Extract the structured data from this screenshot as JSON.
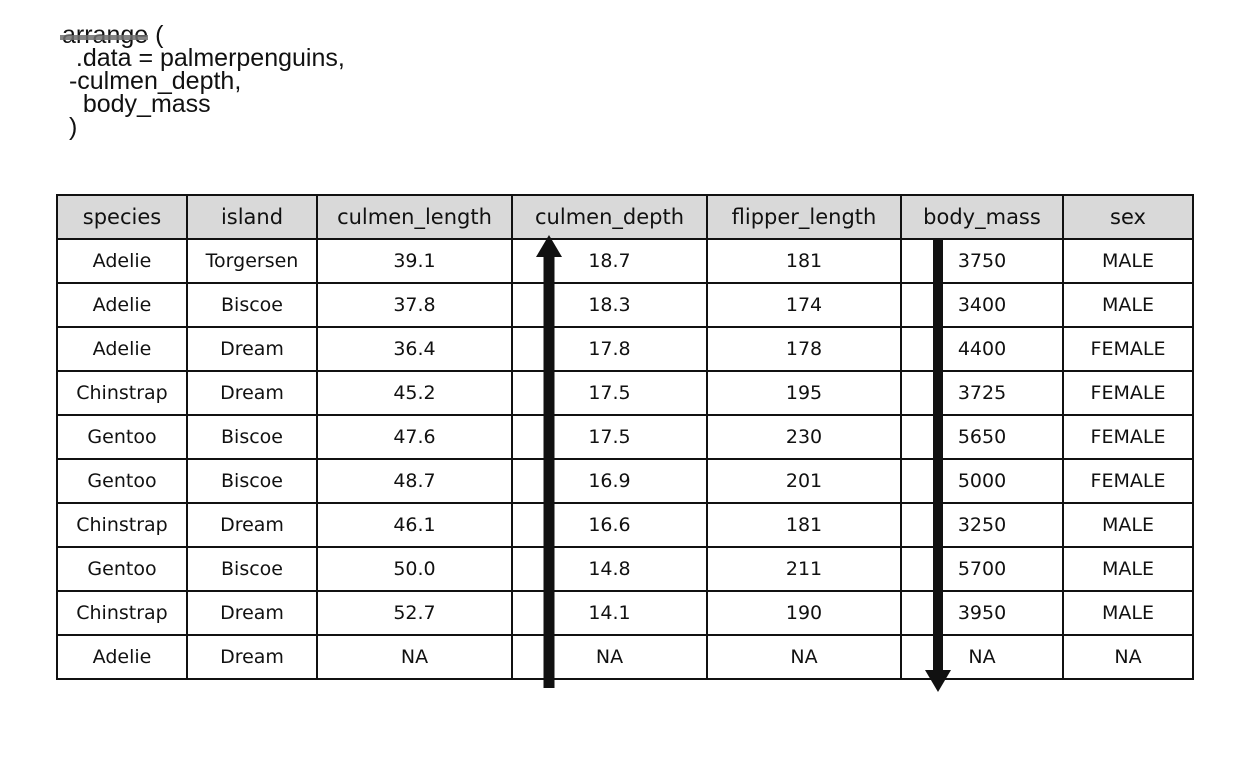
{
  "code": {
    "function_name": "arrange",
    "open_paren": " (",
    "arg_data": "  .data = palmerpenguins,",
    "arg_culmen_depth": " -culmen_depth,",
    "arg_body_mass": "   body_mass",
    "close_paren": " )"
  },
  "table": {
    "columns": [
      "species",
      "island",
      "culmen_length",
      "culmen_depth",
      "flipper_length",
      "body_mass",
      "sex"
    ],
    "rows": [
      [
        "Adelie",
        "Torgersen",
        "39.1",
        "18.7",
        "181",
        "3750",
        "MALE"
      ],
      [
        "Adelie",
        "Biscoe",
        "37.8",
        "18.3",
        "174",
        "3400",
        "MALE"
      ],
      [
        "Adelie",
        "Dream",
        "36.4",
        "17.8",
        "178",
        "4400",
        "FEMALE"
      ],
      [
        "Chinstrap",
        "Dream",
        "45.2",
        "17.5",
        "195",
        "3725",
        "FEMALE"
      ],
      [
        "Gentoo",
        "Biscoe",
        "47.6",
        "17.5",
        "230",
        "5650",
        "FEMALE"
      ],
      [
        "Gentoo",
        "Biscoe",
        "48.7",
        "16.9",
        "201",
        "5000",
        "FEMALE"
      ],
      [
        "Chinstrap",
        "Dream",
        "46.1",
        "16.6",
        "181",
        "3250",
        "MALE"
      ],
      [
        "Gentoo",
        "Biscoe",
        "50.0",
        "14.8",
        "211",
        "5700",
        "MALE"
      ],
      [
        "Chinstrap",
        "Dream",
        "52.7",
        "14.1",
        "190",
        "3950",
        "MALE"
      ],
      [
        "Adelie",
        "Dream",
        "NA",
        "NA",
        "NA",
        "NA",
        "NA"
      ]
    ]
  },
  "sort_arrows": [
    {
      "column": "culmen_depth",
      "direction": "up"
    },
    {
      "column": "body_mass",
      "direction": "down"
    }
  ]
}
